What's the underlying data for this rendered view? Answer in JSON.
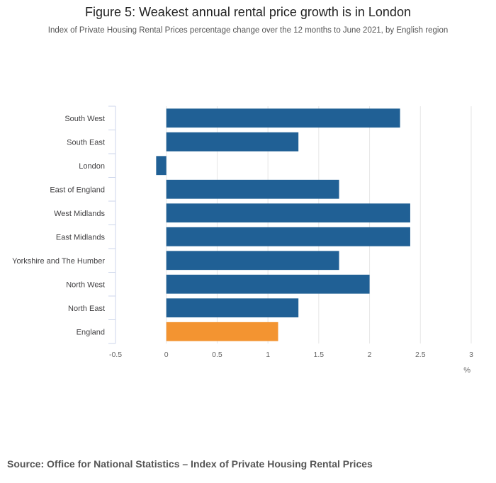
{
  "header": {
    "title": "Figure 5: Weakest annual rental price growth is in London",
    "subtitle": "Index of Private Housing Rental Prices percentage change over the 12 months to June 2021, by English region"
  },
  "footer": {
    "source": "Source: Office for National Statistics – Index of Private Housing Rental Prices"
  },
  "chart_data": {
    "type": "bar",
    "orientation": "horizontal",
    "title": "Figure 5: Weakest annual rental price growth is in London",
    "subtitle": "Index of Private Housing Rental Prices percentage change over the 12 months to June 2021, by English region",
    "xlabel": "%",
    "ylabel": "",
    "categories": [
      "South West",
      "South East",
      "London",
      "East of England",
      "West Midlands",
      "East Midlands",
      "Yorkshire and The Humber",
      "North West",
      "North East",
      "England"
    ],
    "values": [
      2.3,
      1.3,
      -0.1,
      1.7,
      2.4,
      2.4,
      1.7,
      2.0,
      1.3,
      1.1
    ],
    "highlight": [
      "England"
    ],
    "xlim": [
      -0.5,
      3
    ],
    "xticks": [
      -0.5,
      0,
      0.5,
      1,
      1.5,
      2,
      2.5,
      3
    ],
    "xtick_labels": [
      "-0.5",
      "0",
      "0.5",
      "1",
      "1.5",
      "2",
      "2.5",
      "3"
    ],
    "grid": true,
    "legend": "none",
    "colors": {
      "bar": "#206095",
      "highlight": "#F39431",
      "grid": "#E6E6E6",
      "axis": "#CCD6EB",
      "text": "#414042"
    }
  }
}
